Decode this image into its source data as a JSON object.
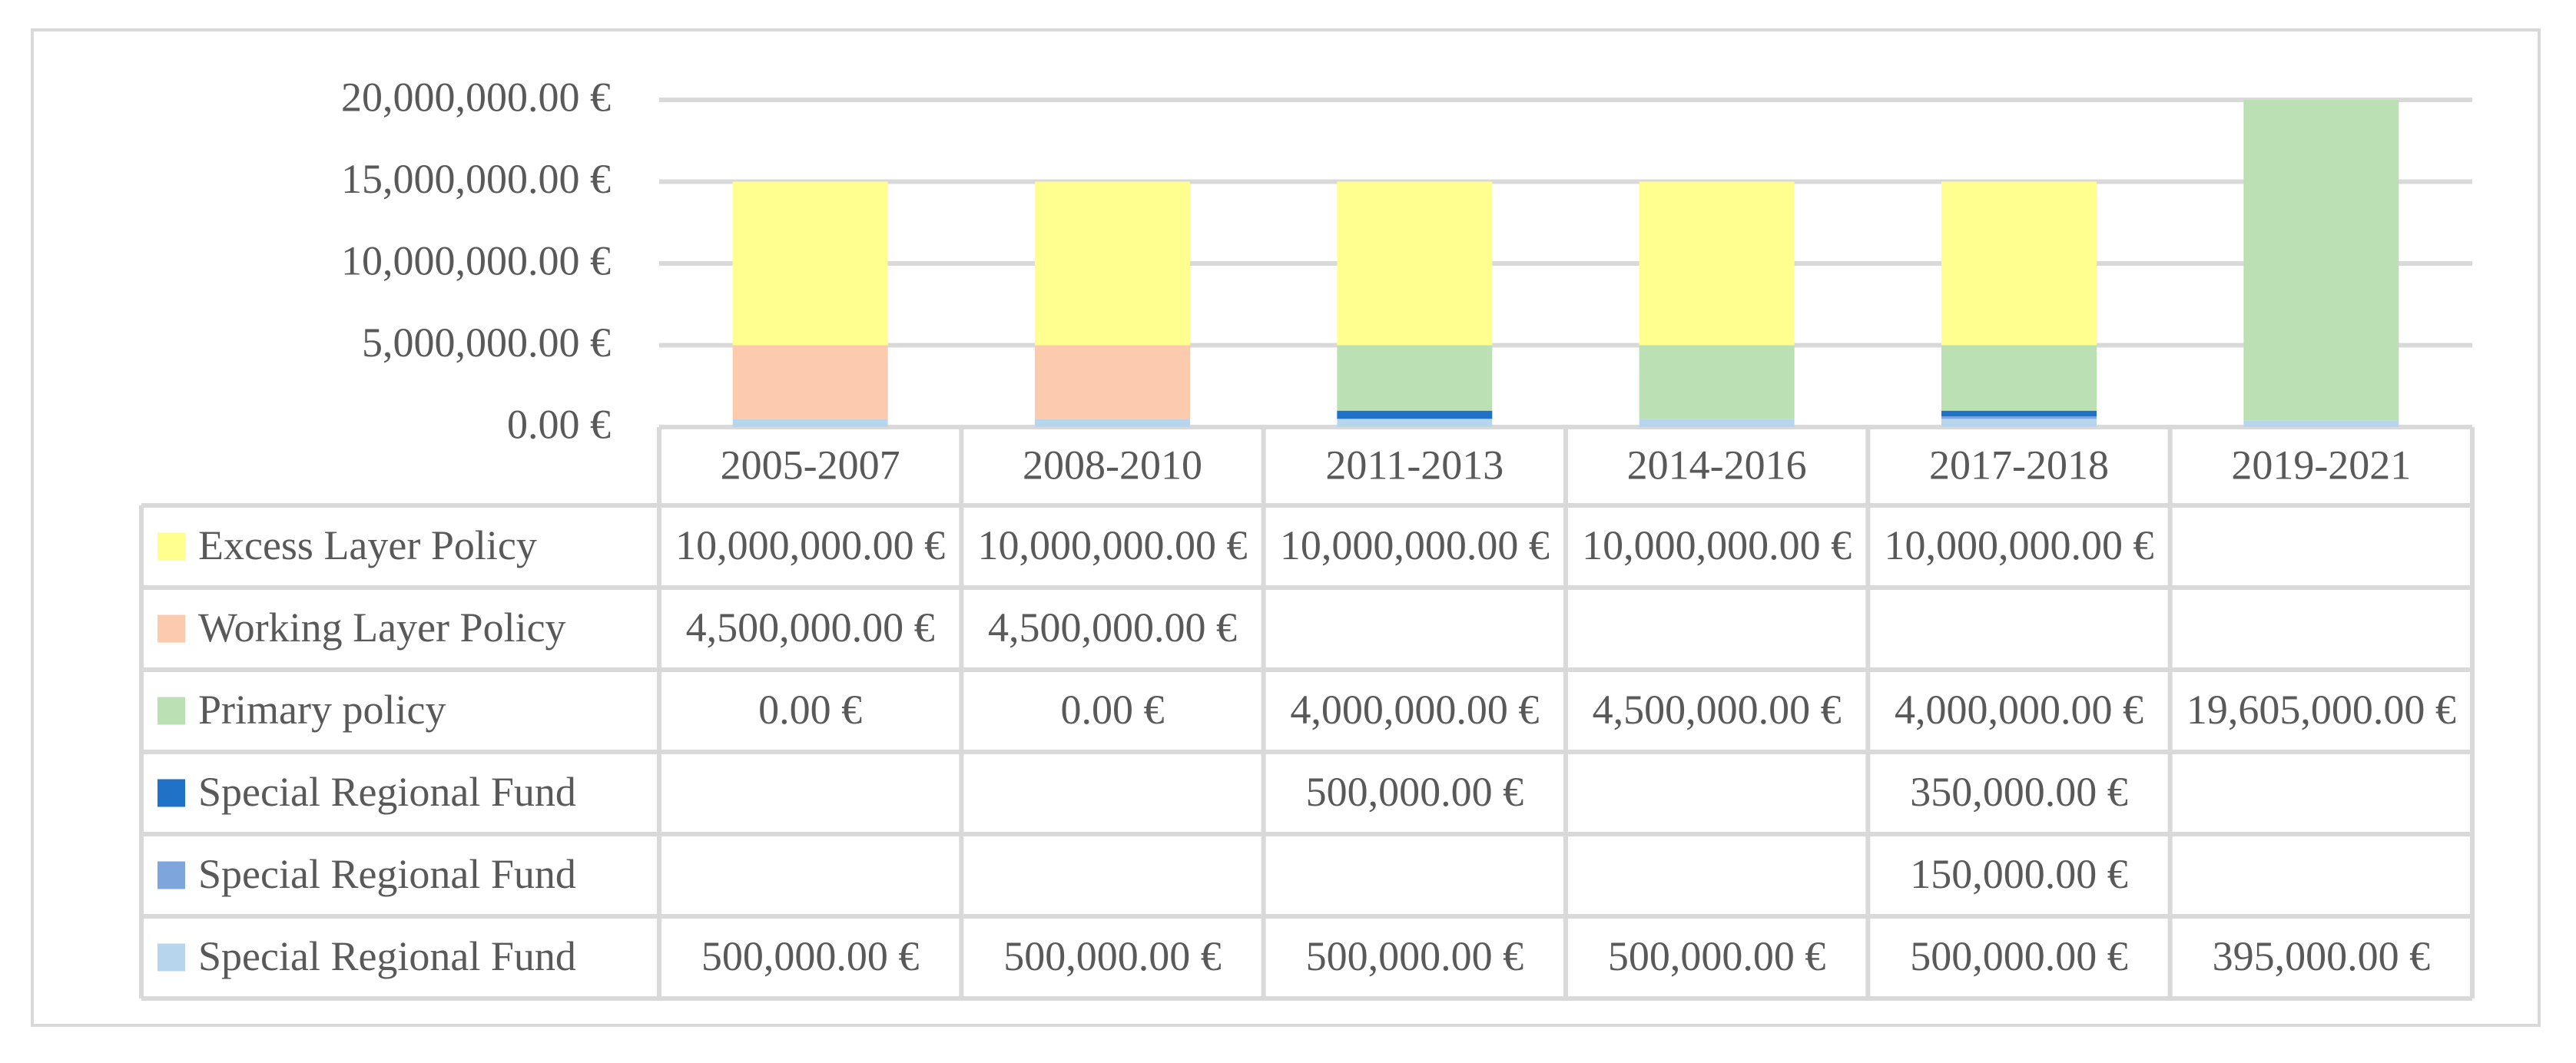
{
  "chart_data": {
    "type": "bar",
    "stacked": true,
    "categories": [
      "2005-2007",
      "2008-2010",
      "2011-2013",
      "2014-2016",
      "2017-2018",
      "2019-2021"
    ],
    "y_ticks": [
      "20,000,000.00 €",
      "15,000,000.00 €",
      "10,000,000.00 €",
      "5,000,000.00 €",
      "0.00 €"
    ],
    "ylim": [
      0,
      20000000
    ],
    "grid": true,
    "legend_placement": "data-table",
    "series": [
      {
        "name": "Excess Layer Policy",
        "color": "#ffff8f",
        "values": [
          10000000,
          10000000,
          10000000,
          10000000,
          10000000,
          null
        ],
        "labels": [
          "10,000,000.00 €",
          "10,000,000.00 €",
          "10,000,000.00 €",
          "10,000,000.00 €",
          "10,000,000.00 €",
          ""
        ]
      },
      {
        "name": "Working Layer Policy",
        "color": "#fccbad",
        "values": [
          4500000,
          4500000,
          null,
          null,
          null,
          null
        ],
        "labels": [
          "4,500,000.00 €",
          "4,500,000.00 €",
          "",
          "",
          "",
          ""
        ]
      },
      {
        "name": "Primary policy",
        "color": "#bae0b4",
        "values": [
          0,
          0,
          4000000,
          4500000,
          4000000,
          19605000
        ],
        "labels": [
          "0.00 €",
          "0.00 €",
          "4,000,000.00 €",
          "4,500,000.00 €",
          "4,000,000.00 €",
          "19,605,000.00 €"
        ]
      },
      {
        "name": "Special Regional Fund",
        "color": "#1f72c8",
        "values": [
          null,
          null,
          500000,
          null,
          350000,
          null
        ],
        "labels": [
          "",
          "",
          "500,000.00 €",
          "",
          "350,000.00 €",
          ""
        ]
      },
      {
        "name": "Special Regional Fund",
        "color": "#7fa6dc",
        "values": [
          null,
          null,
          null,
          null,
          150000,
          null
        ],
        "labels": [
          "",
          "",
          "",
          "",
          "150,000.00 €",
          ""
        ]
      },
      {
        "name": "Special Regional Fund",
        "color": "#b7d6ee",
        "values": [
          500000,
          500000,
          500000,
          500000,
          500000,
          395000
        ],
        "labels": [
          "500,000.00 €",
          "500,000.00 €",
          "500,000.00 €",
          "500,000.00 €",
          "500,000.00 €",
          "395,000.00 €"
        ]
      }
    ]
  }
}
